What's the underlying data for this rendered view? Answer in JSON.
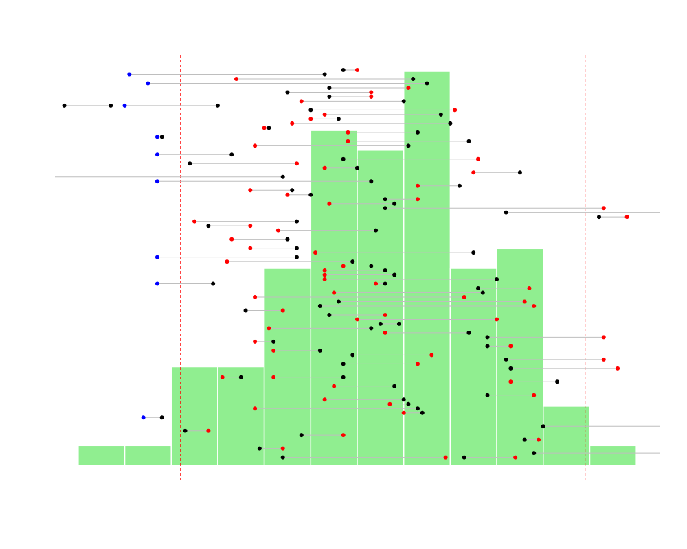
{
  "chart_data": {
    "type": "histogram",
    "title": "",
    "xlabel": "",
    "ylabel": "",
    "axes_drawn": false,
    "grid": false,
    "legend": "none",
    "xlim": [
      -5.2,
      7.8
    ],
    "colors": {
      "bars": "#90ee90",
      "bar_edge": "#ffffff",
      "threshold": "#ff0000",
      "segment": "#bebebe",
      "point_black": "#000000",
      "point_red": "#ff0000",
      "point_blue": "#0000ff"
    },
    "histogram": {
      "bins": [
        -4.7,
        -3.7,
        -2.7,
        -1.7,
        -0.7,
        0.3,
        1.3,
        2.3,
        3.3,
        4.3,
        5.3,
        6.3,
        7.3
      ],
      "counts": [
        1,
        1,
        5,
        5,
        10,
        17,
        16,
        20,
        10,
        11,
        3,
        1
      ]
    },
    "thresholds": [
      -2.5,
      6.2
    ],
    "intervals": [
      {
        "row": 0,
        "x1": 1.0,
        "x2": 1.3,
        "c1": "black",
        "c2": "red"
      },
      {
        "row": 0.2,
        "x1": -3.6,
        "x2": 0.6,
        "c1": "blue",
        "c2": "black"
      },
      {
        "row": 0.4,
        "x1": -1.3,
        "x2": 2.5,
        "c1": "red",
        "c2": "black"
      },
      {
        "row": 0.6,
        "x1": -3.2,
        "x2": 2.8,
        "c1": "blue",
        "c2": "black"
      },
      {
        "row": 0.8,
        "x1": 0.7,
        "x2": 2.4,
        "c1": "black",
        "c2": "red"
      },
      {
        "row": 1.0,
        "x1": -0.2,
        "x2": 1.6,
        "c1": "black",
        "c2": "red"
      },
      {
        "row": 1.2,
        "x1": 0.7,
        "x2": 1.6,
        "c1": "black",
        "c2": "red"
      },
      {
        "row": 1.4,
        "x1": 0.1,
        "x2": 2.3,
        "c1": "red",
        "c2": "black"
      },
      {
        "row": 1.6,
        "x1": -5.0,
        "x2": -4.0,
        "c1": "black",
        "c2": "black"
      },
      {
        "row": 1.6,
        "x1": -3.7,
        "x2": -1.7,
        "c1": "blue",
        "c2": "black"
      },
      {
        "row": 1.8,
        "x1": 0.3,
        "x2": 3.4,
        "c1": "black",
        "c2": "red"
      },
      {
        "row": 2.0,
        "x1": 0.6,
        "x2": 3.1,
        "c1": "red",
        "c2": "black"
      },
      {
        "row": 2.2,
        "x1": 0.3,
        "x2": 0.9,
        "c1": "red",
        "c2": "black"
      },
      {
        "row": 2.4,
        "x1": -0.1,
        "x2": 3.3,
        "c1": "red",
        "c2": "black"
      },
      {
        "row": 2.6,
        "x1": -0.7,
        "x2": -0.6,
        "c1": "red",
        "c2": "black"
      },
      {
        "row": 2.8,
        "x1": 1.1,
        "x2": 2.6,
        "c1": "red",
        "c2": "black"
      },
      {
        "row": 3.0,
        "x1": -3.0,
        "x2": -2.9,
        "c1": "blue",
        "c2": "black"
      },
      {
        "row": 3.2,
        "x1": 1.1,
        "x2": 3.7,
        "c1": "red",
        "c2": "black"
      },
      {
        "row": 3.4,
        "x1": -0.9,
        "x2": 2.4,
        "c1": "red",
        "c2": "black"
      },
      {
        "row": 3.8,
        "x1": -3.0,
        "x2": -1.4,
        "c1": "blue",
        "c2": "black"
      },
      {
        "row": 4.0,
        "x1": 1.0,
        "x2": 3.9,
        "c1": "black",
        "c2": "red"
      },
      {
        "row": 4.2,
        "x1": -2.3,
        "x2": 0.0,
        "c1": "black",
        "c2": "red"
      },
      {
        "row": 4.4,
        "x1": 0.6,
        "x2": 1.3,
        "c1": "red",
        "c2": "black"
      },
      {
        "row": 4.6,
        "x1": 3.8,
        "x2": 4.8,
        "c1": "red",
        "c2": "black"
      },
      {
        "row": 4.8,
        "x1": -5.2,
        "x2": -0.3,
        "c1": "black",
        "c2": "black"
      },
      {
        "row": 5.0,
        "x1": -3.0,
        "x2": 1.6,
        "c1": "blue",
        "c2": "black"
      },
      {
        "row": 5.2,
        "x1": 2.6,
        "x2": 3.5,
        "c1": "red",
        "c2": "black"
      },
      {
        "row": 5.4,
        "x1": -1.0,
        "x2": -0.1,
        "c1": "red",
        "c2": "black"
      },
      {
        "row": 5.6,
        "x1": -0.2,
        "x2": 0.3,
        "c1": "red",
        "c2": "black"
      },
      {
        "row": 5.8,
        "x1": 1.9,
        "x2": 2.6,
        "c1": "black",
        "c2": "red"
      },
      {
        "row": 6.0,
        "x1": 0.7,
        "x2": 2.1,
        "c1": "red",
        "c2": "black"
      },
      {
        "row": 6.2,
        "x1": 1.9,
        "x2": 6.6,
        "c1": "black",
        "c2": "red"
      },
      {
        "row": 6.4,
        "x1": 4.5,
        "x2": 7.8,
        "c1": "black",
        "c2": "black"
      },
      {
        "row": 6.6,
        "x1": 6.5,
        "x2": 7.1,
        "c1": "black",
        "c2": "red"
      },
      {
        "row": 6.8,
        "x1": -2.2,
        "x2": 0.0,
        "c1": "red",
        "c2": "black"
      },
      {
        "row": 7.0,
        "x1": -1.9,
        "x2": -1.0,
        "c1": "black",
        "c2": "red"
      },
      {
        "row": 7.2,
        "x1": -0.4,
        "x2": 1.7,
        "c1": "red",
        "c2": "black"
      },
      {
        "row": 7.6,
        "x1": -1.4,
        "x2": -0.2,
        "c1": "red",
        "c2": "black"
      },
      {
        "row": 8.0,
        "x1": -1.0,
        "x2": 0.0,
        "c1": "red",
        "c2": "black"
      },
      {
        "row": 8.2,
        "x1": 0.4,
        "x2": 3.8,
        "c1": "red",
        "c2": "black"
      },
      {
        "row": 8.4,
        "x1": -3.0,
        "x2": 0.0,
        "c1": "blue",
        "c2": "black"
      },
      {
        "row": 8.6,
        "x1": -1.5,
        "x2": 1.2,
        "c1": "red",
        "c2": "black"
      },
      {
        "row": 8.8,
        "x1": 1.0,
        "x2": 1.6,
        "c1": "red",
        "c2": "black"
      },
      {
        "row": 9.0,
        "x1": 0.6,
        "x2": 1.9,
        "c1": "red",
        "c2": "black"
      },
      {
        "row": 9.2,
        "x1": 0.6,
        "x2": 2.1,
        "c1": "red",
        "c2": "black"
      },
      {
        "row": 9.4,
        "x1": 0.6,
        "x2": 4.3,
        "c1": "red",
        "c2": "black"
      },
      {
        "row": 9.6,
        "x1": -3.0,
        "x2": -1.8,
        "c1": "blue",
        "c2": "black"
      },
      {
        "row": 9.6,
        "x1": 1.7,
        "x2": 1.9,
        "c1": "red",
        "c2": "black"
      },
      {
        "row": 9.8,
        "x1": 3.9,
        "x2": 5.0,
        "c1": "black",
        "c2": "red"
      },
      {
        "row": 10.0,
        "x1": 0.8,
        "x2": 4.0,
        "c1": "red",
        "c2": "black"
      },
      {
        "row": 10.2,
        "x1": -0.9,
        "x2": 3.6,
        "c1": "red",
        "c2": "red"
      },
      {
        "row": 10.4,
        "x1": 0.9,
        "x2": 4.9,
        "c1": "black",
        "c2": "red"
      },
      {
        "row": 10.6,
        "x1": 0.5,
        "x2": 5.1,
        "c1": "black",
        "c2": "red"
      },
      {
        "row": 10.8,
        "x1": -1.1,
        "x2": -0.3,
        "c1": "black",
        "c2": "red"
      },
      {
        "row": 11.0,
        "x1": 0.7,
        "x2": 1.9,
        "c1": "black",
        "c2": "red"
      },
      {
        "row": 11.2,
        "x1": 1.3,
        "x2": 4.3,
        "c1": "red",
        "c2": "red"
      },
      {
        "row": 11.4,
        "x1": 1.8,
        "x2": 2.2,
        "c1": "black",
        "c2": "black"
      },
      {
        "row": 11.6,
        "x1": -0.6,
        "x2": 1.6,
        "c1": "red",
        "c2": "black"
      },
      {
        "row": 11.8,
        "x1": 1.9,
        "x2": 3.7,
        "c1": "red",
        "c2": "black"
      },
      {
        "row": 12.0,
        "x1": 4.1,
        "x2": 6.6,
        "c1": "black",
        "c2": "red"
      },
      {
        "row": 12.2,
        "x1": -0.9,
        "x2": -0.5,
        "c1": "red",
        "c2": "black"
      },
      {
        "row": 12.4,
        "x1": 4.1,
        "x2": 4.6,
        "c1": "black",
        "c2": "red"
      },
      {
        "row": 12.6,
        "x1": -0.5,
        "x2": 0.5,
        "c1": "red",
        "c2": "black"
      },
      {
        "row": 12.8,
        "x1": 1.2,
        "x2": 2.9,
        "c1": "black",
        "c2": "red"
      },
      {
        "row": 13.0,
        "x1": 4.5,
        "x2": 6.6,
        "c1": "black",
        "c2": "red"
      },
      {
        "row": 13.2,
        "x1": 1.0,
        "x2": 2.6,
        "c1": "black",
        "c2": "red"
      },
      {
        "row": 13.4,
        "x1": 4.6,
        "x2": 6.9,
        "c1": "black",
        "c2": "red"
      },
      {
        "row": 13.8,
        "x1": -1.6,
        "x2": -1.2,
        "c1": "red",
        "c2": "black"
      },
      {
        "row": 13.8,
        "x1": -0.5,
        "x2": 1.0,
        "c1": "red",
        "c2": "black"
      },
      {
        "row": 14.0,
        "x1": 4.6,
        "x2": 5.6,
        "c1": "red",
        "c2": "black"
      },
      {
        "row": 14.2,
        "x1": 0.8,
        "x2": 2.1,
        "c1": "red",
        "c2": "black"
      },
      {
        "row": 14.6,
        "x1": 4.1,
        "x2": 5.1,
        "c1": "black",
        "c2": "red"
      },
      {
        "row": 14.8,
        "x1": 0.6,
        "x2": 2.3,
        "c1": "red",
        "c2": "black"
      },
      {
        "row": 15.0,
        "x1": 2.0,
        "x2": 2.4,
        "c1": "red",
        "c2": "black"
      },
      {
        "row": 15.2,
        "x1": -0.9,
        "x2": 2.6,
        "c1": "red",
        "c2": "black"
      },
      {
        "row": 15.4,
        "x1": 2.3,
        "x2": 2.7,
        "c1": "red",
        "c2": "black"
      },
      {
        "row": 15.6,
        "x1": -3.3,
        "x2": -2.9,
        "c1": "blue",
        "c2": "black"
      },
      {
        "row": 16.0,
        "x1": 5.3,
        "x2": 7.8,
        "c1": "black",
        "c2": "black"
      },
      {
        "row": 16.2,
        "x1": -2.4,
        "x2": -1.9,
        "c1": "black",
        "c2": "red"
      },
      {
        "row": 16.4,
        "x1": 0.1,
        "x2": 1.0,
        "c1": "black",
        "c2": "red"
      },
      {
        "row": 16.6,
        "x1": 4.9,
        "x2": 5.2,
        "c1": "black",
        "c2": "red"
      },
      {
        "row": 17.0,
        "x1": -0.8,
        "x2": -0.3,
        "c1": "black",
        "c2": "red"
      },
      {
        "row": 17.2,
        "x1": 5.1,
        "x2": 7.8,
        "c1": "black",
        "c2": "black"
      },
      {
        "row": 17.4,
        "x1": -0.3,
        "x2": 3.2,
        "c1": "black",
        "c2": "red"
      },
      {
        "row": 17.4,
        "x1": 3.6,
        "x2": 4.7,
        "c1": "black",
        "c2": "red"
      }
    ]
  }
}
